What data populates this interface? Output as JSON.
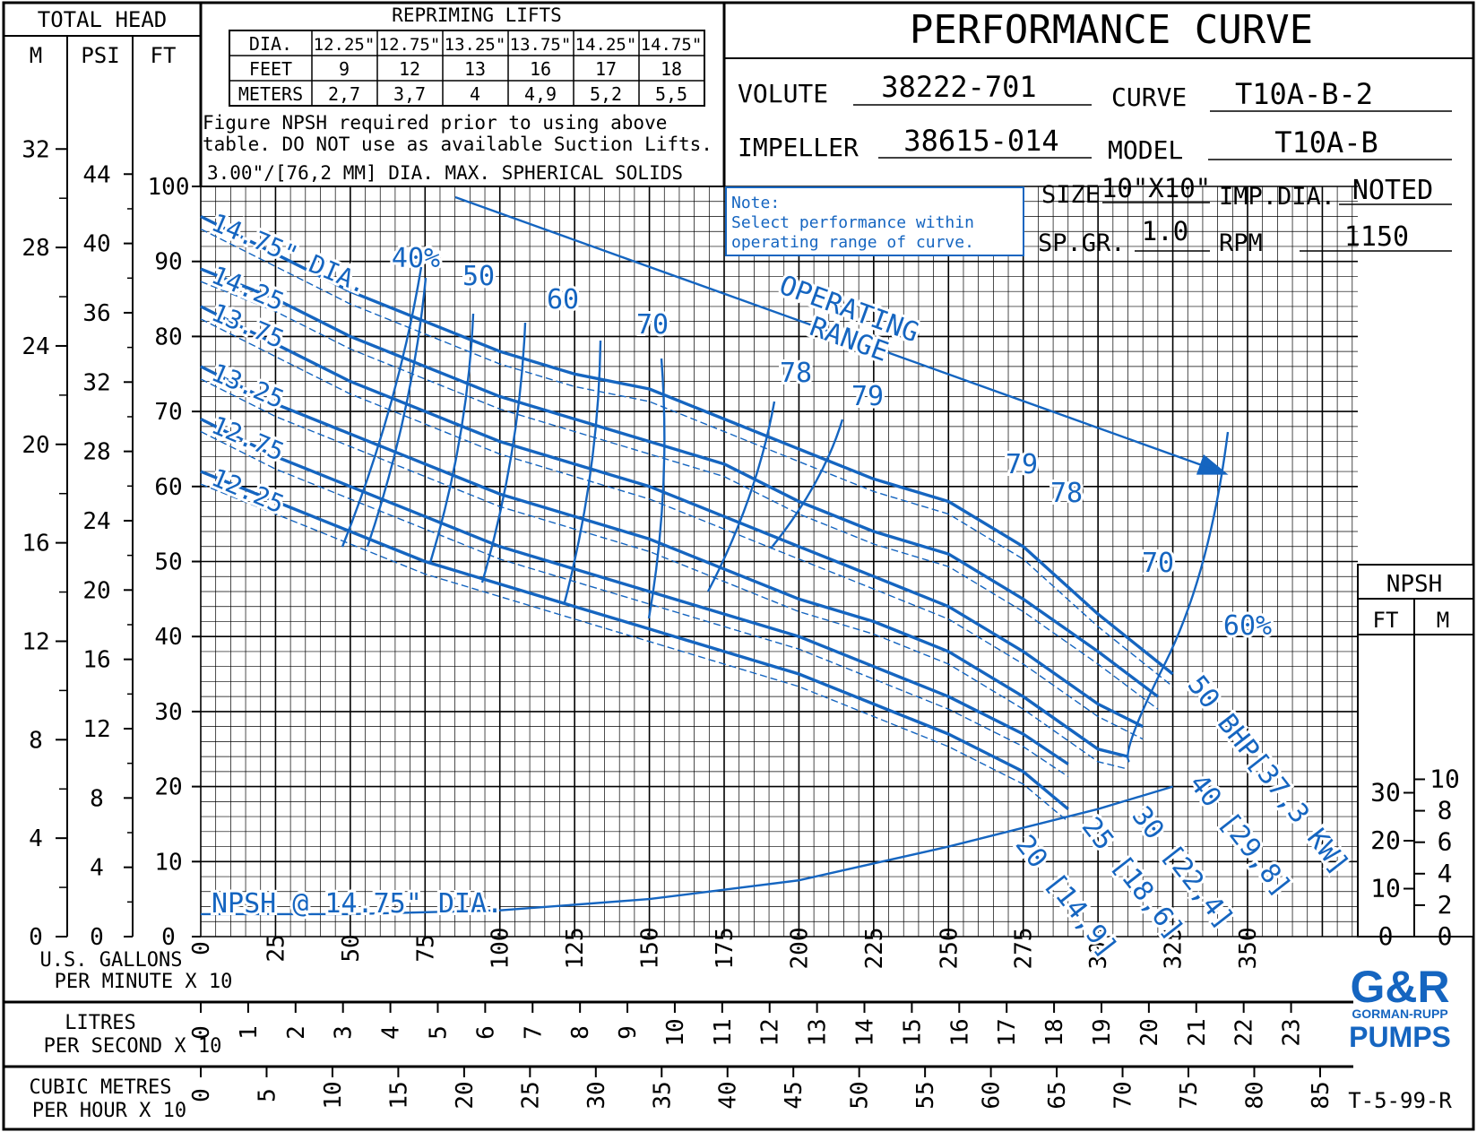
{
  "header": {
    "title": "PERFORMANCE CURVE",
    "volute_label": "VOLUTE",
    "volute": "38222-701",
    "curve_label": "CURVE",
    "curve": "T10A-B-2",
    "impeller_label": "IMPELLER",
    "impeller": "38615-014",
    "model_label": "MODEL",
    "model": "T10A-B",
    "size_label": "SIZE",
    "size": "10\"X10\"",
    "impdia_label": "IMP.DIA.",
    "impdia": "NOTED",
    "spgr_label": "SP.GR.",
    "spgr": "1.0",
    "rpm_label": "RPM",
    "rpm": "1150",
    "note_line1": "Note:",
    "note_line2": "Select performance within",
    "note_line3": "operating range of curve.",
    "doc_code": "T-5-99-R",
    "logo_top": "G&R",
    "logo_mid": "GORMAN-RUPP",
    "logo_bottom": "PUMPS"
  },
  "repriming": {
    "title": "REPRIMING LIFTS",
    "row_labels": [
      "DIA.",
      "FEET",
      "METERS"
    ],
    "dia": [
      "12.25\"",
      "12.75\"",
      "13.25\"",
      "13.75\"",
      "14.25\"",
      "14.75\""
    ],
    "feet": [
      "9",
      "12",
      "13",
      "16",
      "17",
      "18"
    ],
    "meters": [
      "2,7",
      "3,7",
      "4",
      "4,9",
      "5,2",
      "5,5"
    ],
    "note1": "Figure NPSH required prior to using above",
    "note2": "table. DO NOT use as available Suction Lifts.",
    "solids": "3.00\"/[76,2 MM] DIA. MAX. SPHERICAL SOLIDS"
  },
  "chart_data": {
    "type": "line",
    "title": "PERFORMANCE CURVE",
    "xlabel": "U.S. GALLONS PER MINUTE X 10",
    "ylabel": "TOTAL HEAD",
    "xlim": [
      0,
      375
    ],
    "ylim": [
      0,
      100
    ],
    "grid": true,
    "x_ticks": [
      "0",
      "25",
      "50",
      "75",
      "100",
      "125",
      "150",
      "175",
      "200",
      "225",
      "250",
      "275",
      "300",
      "325",
      "350"
    ],
    "y_ticks_ft": [
      "0",
      "10",
      "20",
      "30",
      "40",
      "50",
      "60",
      "70",
      "80",
      "90",
      "100"
    ],
    "head_axis_title": "TOTAL HEAD",
    "head_axis_units": [
      "M",
      "PSI",
      "FT"
    ],
    "m_ticks": [
      "0",
      "4",
      "8",
      "12",
      "16",
      "20",
      "24",
      "28",
      "32"
    ],
    "psi_ticks": [
      "0",
      "4",
      "8",
      "12",
      "16",
      "20",
      "24",
      "28",
      "32",
      "36",
      "40",
      "44"
    ],
    "lps_label": [
      "LITRES",
      "PER SECOND X 10"
    ],
    "lps_ticks": [
      "0",
      "1",
      "2",
      "3",
      "4",
      "5",
      "6",
      "7",
      "8",
      "9",
      "10",
      "11",
      "12",
      "13",
      "14",
      "15",
      "16",
      "17",
      "18",
      "19",
      "20",
      "21",
      "22",
      "23"
    ],
    "m3h_label": [
      "CUBIC METRES",
      "PER HOUR X 10"
    ],
    "m3h_ticks": [
      "0",
      "5",
      "10",
      "15",
      "20",
      "25",
      "30",
      "35",
      "40",
      "45",
      "50",
      "55",
      "60",
      "65",
      "70",
      "75",
      "80",
      "85"
    ],
    "npsh_axis": {
      "title": "NPSH",
      "units": [
        "FT",
        "M"
      ],
      "ft_ticks": [
        "0",
        "10",
        "20",
        "30"
      ],
      "m_ticks": [
        "0",
        "2",
        "4",
        "6",
        "8",
        "10"
      ]
    },
    "series": [
      {
        "name": "14.75\" DIA.",
        "x": [
          0,
          25,
          50,
          75,
          100,
          125,
          150,
          175,
          200,
          225,
          250,
          275,
          300,
          325
        ],
        "y": [
          96,
          91,
          86,
          82,
          78,
          75,
          73,
          69,
          65,
          61,
          58,
          52,
          43,
          35
        ]
      },
      {
        "name": "14.25",
        "x": [
          0,
          25,
          50,
          75,
          100,
          125,
          150,
          175,
          200,
          225,
          250,
          275,
          300,
          320
        ],
        "y": [
          89,
          85,
          80,
          76,
          72,
          69,
          66,
          63,
          58,
          54,
          51,
          45,
          38,
          32
        ]
      },
      {
        "name": "13.75",
        "x": [
          0,
          25,
          50,
          75,
          100,
          125,
          150,
          175,
          200,
          225,
          250,
          275,
          300,
          315
        ],
        "y": [
          84,
          79,
          74,
          70,
          66,
          63,
          60,
          56,
          52,
          48,
          44,
          38,
          31,
          28
        ]
      },
      {
        "name": "13.25",
        "x": [
          0,
          25,
          50,
          75,
          100,
          125,
          150,
          175,
          200,
          225,
          250,
          275,
          300,
          310
        ],
        "y": [
          76,
          71,
          67,
          63,
          59,
          56,
          53,
          49,
          45,
          42,
          38,
          32,
          25,
          24
        ]
      },
      {
        "name": "12.75",
        "x": [
          0,
          25,
          50,
          75,
          100,
          125,
          150,
          175,
          200,
          225,
          250,
          275,
          290
        ],
        "y": [
          69,
          64,
          60,
          56,
          52,
          49,
          46,
          43,
          40,
          36,
          32,
          27,
          23
        ]
      },
      {
        "name": "12.25",
        "x": [
          0,
          25,
          50,
          75,
          100,
          125,
          150,
          175,
          200,
          225,
          250,
          275,
          290
        ],
        "y": [
          62,
          58,
          54,
          50,
          47,
          44,
          41,
          38,
          35,
          31,
          27,
          22,
          17
        ]
      }
    ],
    "npsh": {
      "name": "NPSH @ 14.75\" DIA.",
      "x": [
        0,
        50,
        100,
        150,
        200,
        250,
        275,
        300,
        325
      ],
      "y": [
        3,
        3,
        3.5,
        5,
        7.5,
        12,
        14.5,
        17,
        20
      ]
    },
    "efficiency_labels": [
      "40%",
      "50",
      "60",
      "70",
      "78",
      "79",
      "79",
      "78",
      "70",
      "60%"
    ],
    "bhp_labels": [
      "20 [14,9]",
      "25 [18,6]",
      "30 [22,4]",
      "40 [29,8]",
      "50 BHP[37,3 KW]"
    ],
    "operating_range_label": [
      "OPERATING",
      "RANGE"
    ],
    "series_colors": {
      "head": "#1565c0",
      "grid": "#000000"
    }
  }
}
